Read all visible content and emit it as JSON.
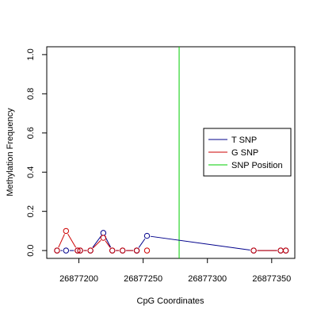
{
  "chart_data": {
    "type": "line",
    "title": "",
    "xlabel": "CpG Coordinates",
    "ylabel": "Methylation Frequency",
    "xlim": [
      26877175,
      26877368
    ],
    "ylim": [
      -0.04,
      1.04
    ],
    "x_ticks": [
      26877200,
      26877250,
      26877300,
      26877350
    ],
    "x_tick_labels": [
      "26877200",
      "26877250",
      "26877300",
      "26877350"
    ],
    "y_ticks": [
      0.0,
      0.2,
      0.4,
      0.6,
      0.8,
      1.0
    ],
    "y_tick_labels": [
      "0.0",
      "0.2",
      "0.4",
      "0.6",
      "0.8",
      "1.0"
    ],
    "grid": false,
    "legend_position": "right",
    "series": [
      {
        "name": "T SNP",
        "color": "#00008B",
        "segments": [
          [
            [
              26877183,
              0.0
            ],
            [
              26877190,
              0.0
            ],
            [
              26877199,
              0.0
            ],
            [
              26877201,
              0.0
            ],
            [
              26877209,
              0.0
            ],
            [
              26877219,
              0.09
            ],
            [
              26877226,
              0.0
            ],
            [
              26877234,
              0.0
            ],
            [
              26877245,
              0.0
            ]
          ],
          [
            [
              26877245,
              0.0
            ],
            [
              26877253,
              0.075
            ],
            [
              26877336,
              0.0
            ],
            [
              26877357,
              0.0
            ],
            [
              26877361,
              0.0
            ]
          ]
        ]
      },
      {
        "name": "G SNP",
        "color": "#CD0000",
        "segments": [
          [
            [
              26877183,
              0.0
            ],
            [
              26877190,
              0.1
            ],
            [
              26877199,
              0.0
            ],
            [
              26877201,
              0.0
            ],
            [
              26877209,
              0.0
            ],
            [
              26877219,
              0.065
            ],
            [
              26877226,
              0.0
            ],
            [
              26877234,
              0.0
            ],
            [
              26877245,
              0.0
            ]
          ],
          [
            [
              26877253,
              0.0
            ]
          ],
          [
            [
              26877336,
              0.0
            ],
            [
              26877357,
              0.0
            ],
            [
              26877361,
              0.0
            ]
          ]
        ]
      }
    ],
    "snp_position": {
      "name": "SNP Position",
      "x": 26877278,
      "color": "#00CD00"
    }
  },
  "legend": {
    "items": [
      {
        "label": "T SNP",
        "color": "#00008B"
      },
      {
        "label": "G SNP",
        "color": "#CD0000"
      },
      {
        "label": "SNP Position",
        "color": "#00CD00"
      }
    ]
  }
}
